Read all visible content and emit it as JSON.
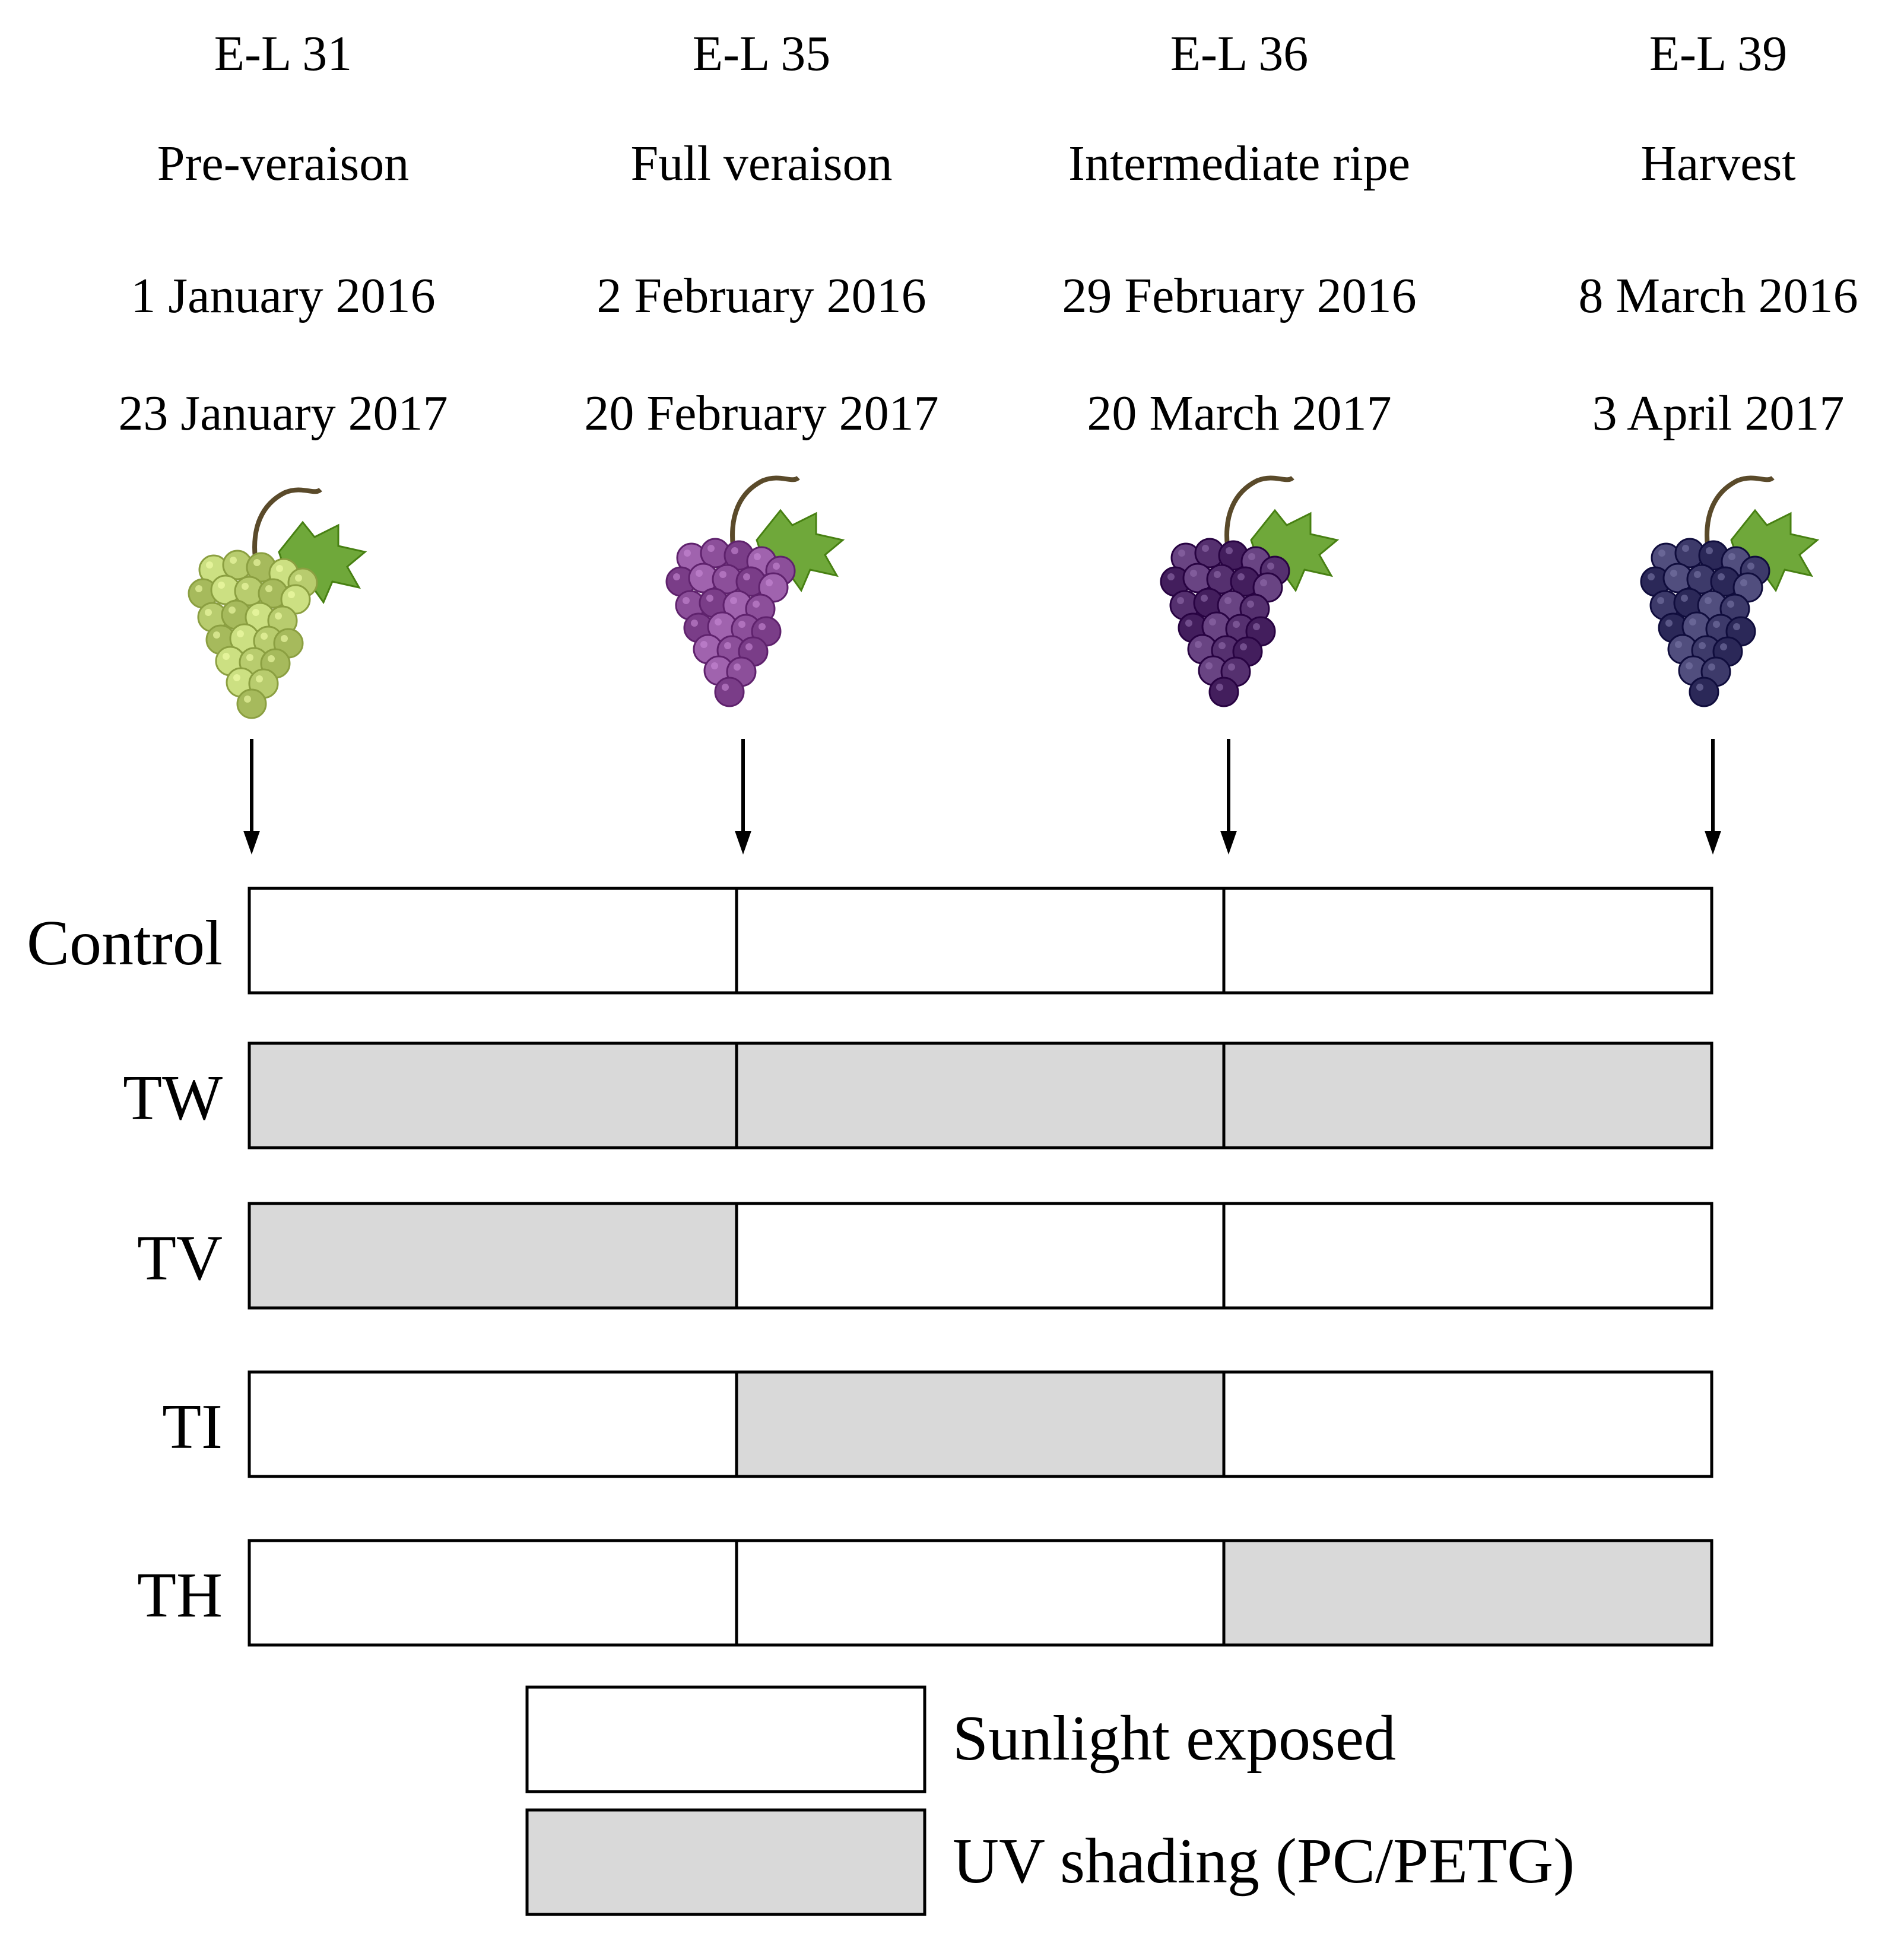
{
  "stages": [
    {
      "code": "E-L 31",
      "name": "Pre-veraison",
      "date_2016": "1 January 2016",
      "date_2017": "23 January 2017",
      "grape_icon": "green-grape-bunch-icon"
    },
    {
      "code": "E-L 35",
      "name": "Full veraison",
      "date_2016": "2 February 2016",
      "date_2017": "20 February 2017",
      "grape_icon": "purple-grape-bunch-icon"
    },
    {
      "code": "E-L 36",
      "name": "Intermediate ripe",
      "date_2016": "29 February 2016",
      "date_2017": "20 March 2017",
      "grape_icon": "dark-purple-grape-bunch-icon"
    },
    {
      "code": "E-L 39",
      "name": "Harvest",
      "date_2016": "8 March 2016",
      "date_2017": "3 April 2017",
      "grape_icon": "blue-black-grape-bunch-icon"
    }
  ],
  "treatments": [
    {
      "label": "Control",
      "segments": [
        "exposed",
        "exposed",
        "exposed"
      ]
    },
    {
      "label": "TW",
      "segments": [
        "shaded",
        "shaded",
        "shaded"
      ]
    },
    {
      "label": "TV",
      "segments": [
        "shaded",
        "exposed",
        "exposed"
      ]
    },
    {
      "label": "TI",
      "segments": [
        "exposed",
        "shaded",
        "exposed"
      ]
    },
    {
      "label": "TH",
      "segments": [
        "exposed",
        "exposed",
        "shaded"
      ]
    }
  ],
  "legend": {
    "exposed_label": "Sunlight exposed",
    "shaded_label": "UV shading (PC/PETG)"
  },
  "colors": {
    "exposed": "#ffffff",
    "shaded": "#d9d9d9",
    "line": "#000000",
    "grape_green": "#b8cc6e",
    "grape_purple": "#8c4f9a",
    "grape_dark_purple": "#55306f",
    "grape_blue_black": "#3d3a6a",
    "leaf": "#6fa83a",
    "stem": "#5a4a2a"
  }
}
